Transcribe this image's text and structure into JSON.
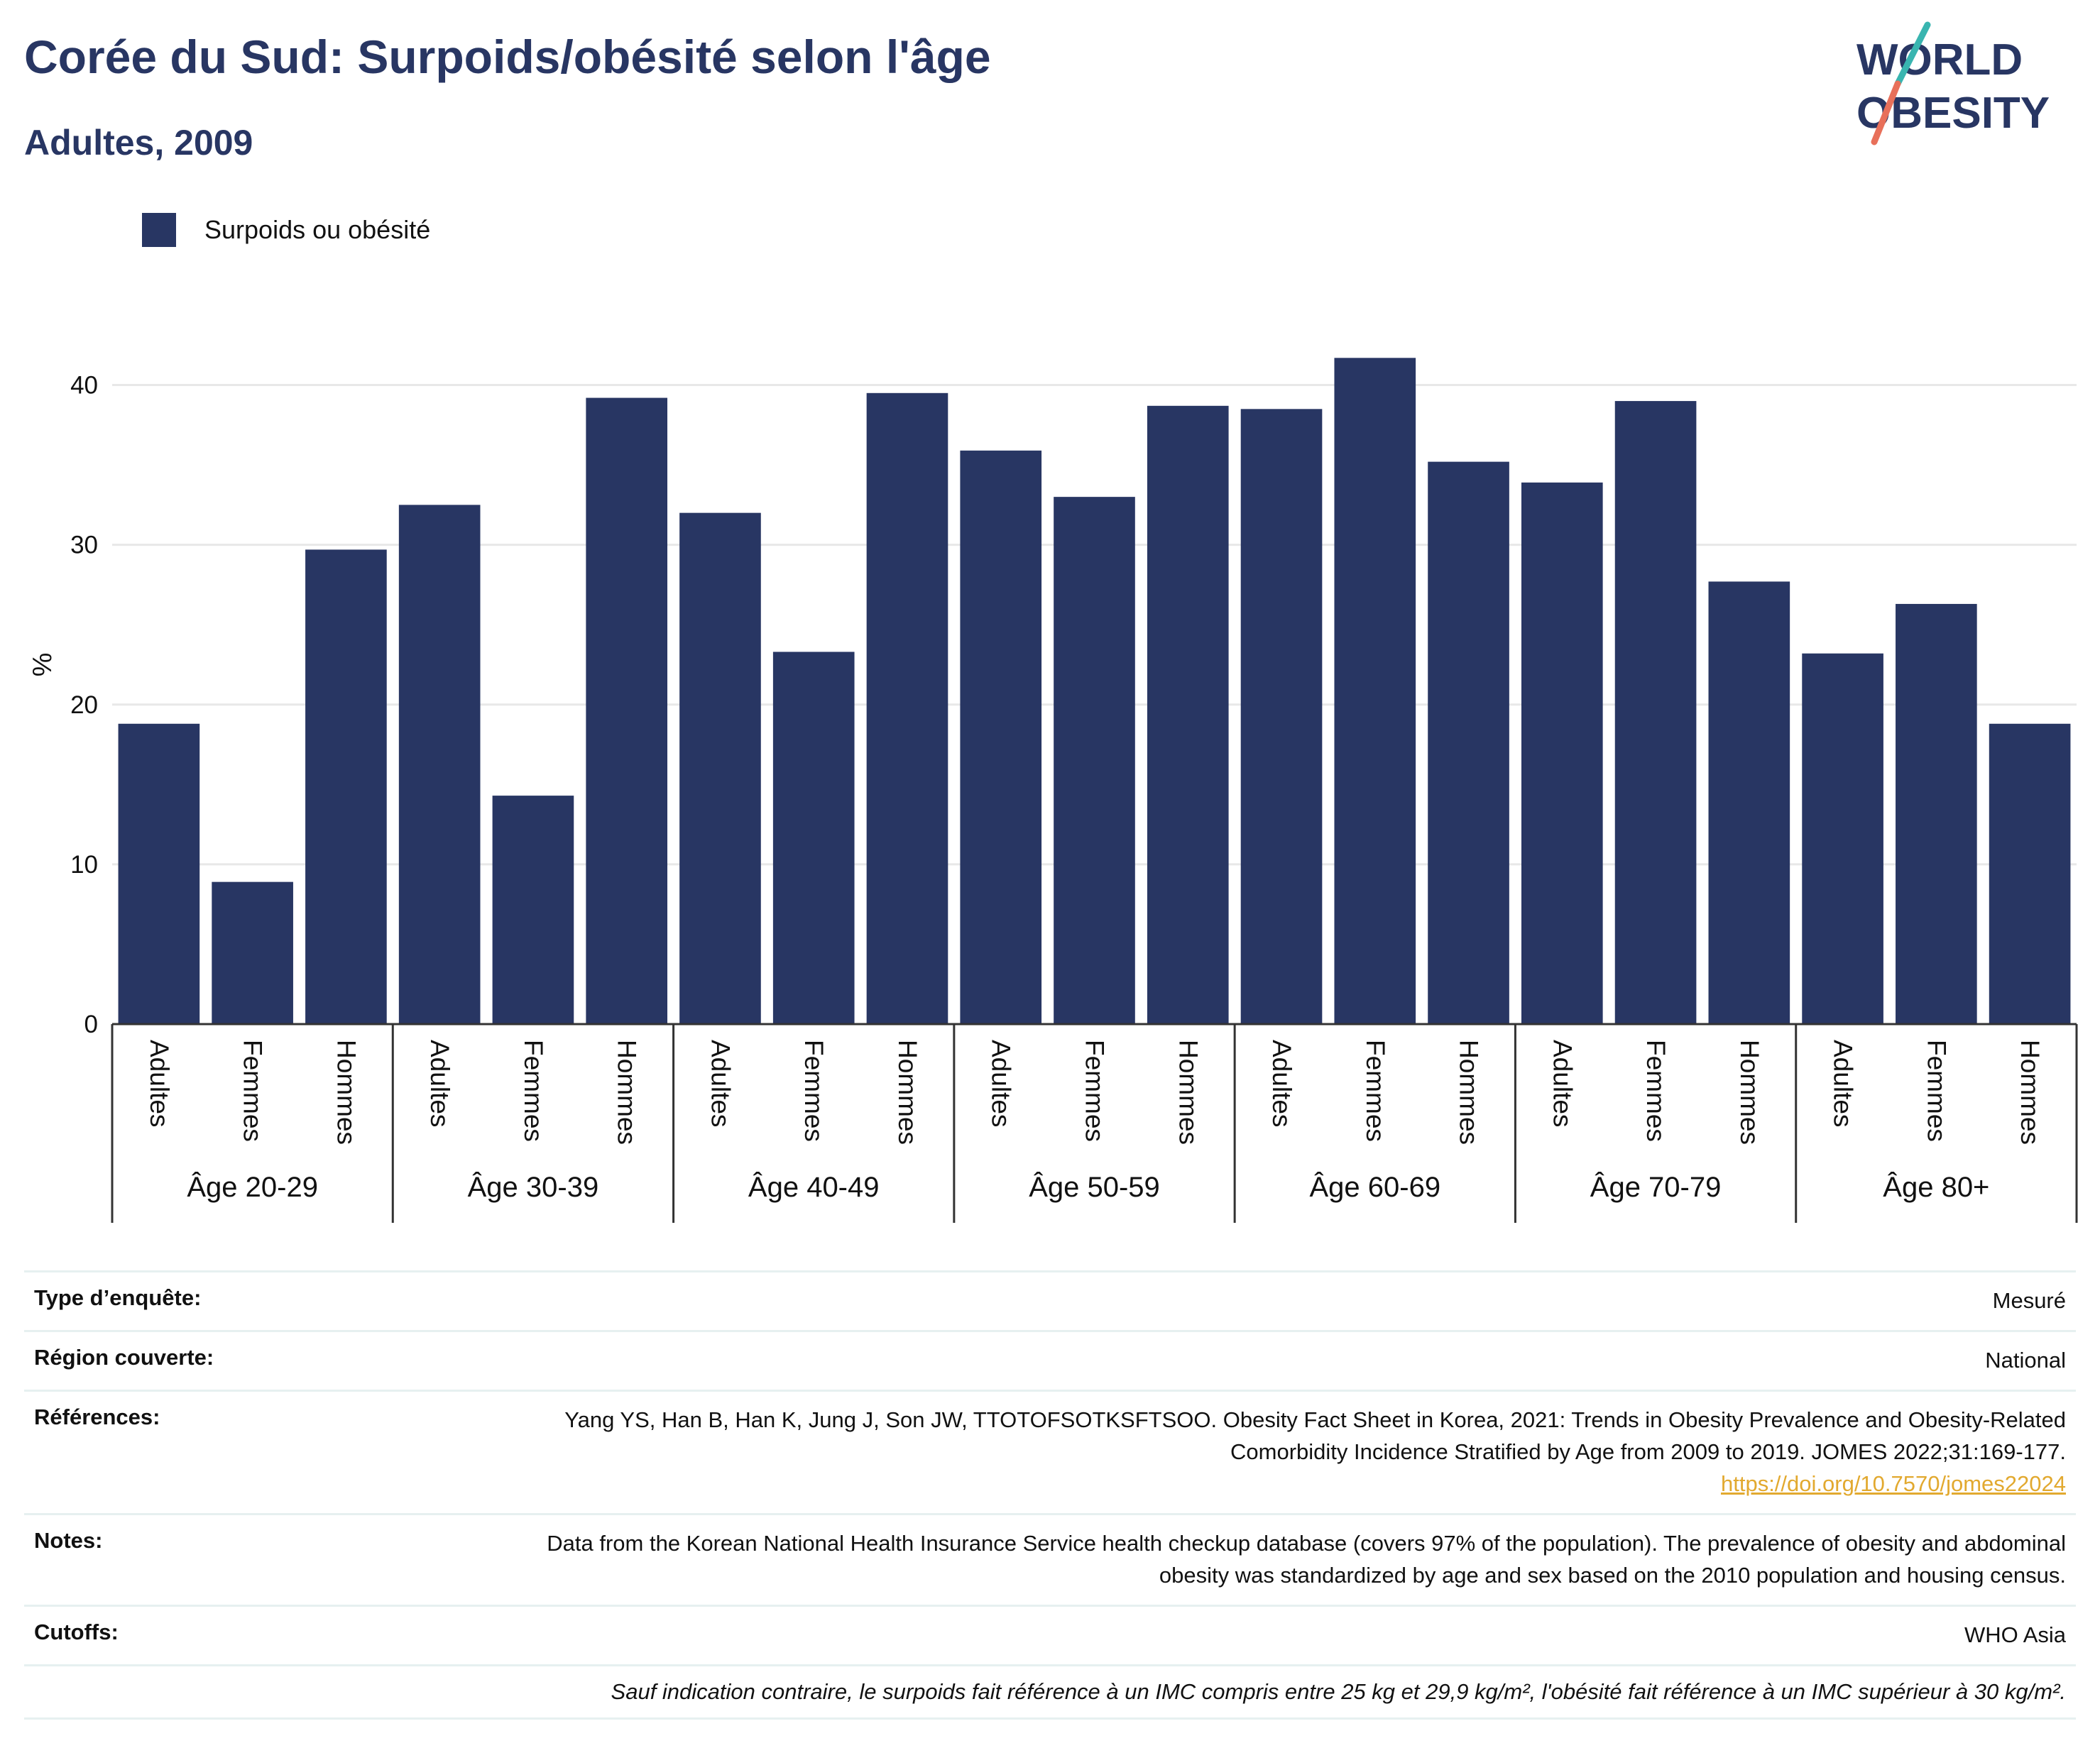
{
  "header": {
    "title": "Corée du Sud: Surpoids/obésité selon l'âge",
    "subtitle": "Adultes, 2009"
  },
  "logo": {
    "line1": "WORLD",
    "line2": "OBESITY",
    "color_text": "#283663",
    "color_slash_top": "#39b5b0",
    "color_slash_bottom": "#e8705a"
  },
  "legend": {
    "label": "Surpoids ou obésité"
  },
  "chart_data": {
    "type": "bar",
    "title": "",
    "ylabel": "%",
    "ylim": [
      0,
      45
    ],
    "yticks": [
      0,
      10,
      20,
      30,
      40
    ],
    "grid": true,
    "legend_position": "top-left",
    "bar_color": "#283663",
    "groups": [
      "Âge 20-29",
      "Âge 30-39",
      "Âge 40-49",
      "Âge 50-59",
      "Âge 60-69",
      "Âge 70-79",
      "Âge 80+"
    ],
    "subcategories": [
      "Adultes",
      "Femmes",
      "Hommes"
    ],
    "series": [
      {
        "name": "Surpoids ou obésité",
        "values": [
          [
            18.8,
            8.9,
            29.7
          ],
          [
            32.5,
            14.3,
            39.2
          ],
          [
            32.0,
            23.3,
            39.5
          ],
          [
            35.9,
            33.0,
            38.7
          ],
          [
            38.5,
            41.7,
            35.2
          ],
          [
            33.9,
            39.0,
            27.7
          ],
          [
            23.2,
            26.3,
            18.8
          ]
        ]
      }
    ]
  },
  "info": {
    "rows": [
      {
        "key": "Type d’enquête:",
        "value": "Mesuré"
      },
      {
        "key": "Région couverte:",
        "value": "National"
      },
      {
        "key": "Références:",
        "value": "Yang YS, Han B, Han K, Jung J, Son JW, TTOTOFSOTKSFTSOO. Obesity Fact Sheet in Korea, 2021: Trends in Obesity Prevalence and Obesity-Related Comorbidity Incidence Stratified by Age from 2009 to 2019. JOMES 2022;31:169-177.",
        "link": "https://doi.org/10.7570/jomes22024"
      },
      {
        "key": "Notes:",
        "value": "Data from the Korean National Health Insurance Service health checkup database (covers 97% of the population). The prevalence of obesity and abdominal obesity was standardized by age and sex based on the 2010 population and housing census."
      },
      {
        "key": "Cutoffs:",
        "value": "WHO Asia"
      }
    ],
    "footnote": "Sauf indication contraire, le surpoids fait référence à un IMC compris entre 25 kg et 29,9 kg/m², l'obésité fait référence à un IMC supérieur à 30 kg/m²."
  }
}
